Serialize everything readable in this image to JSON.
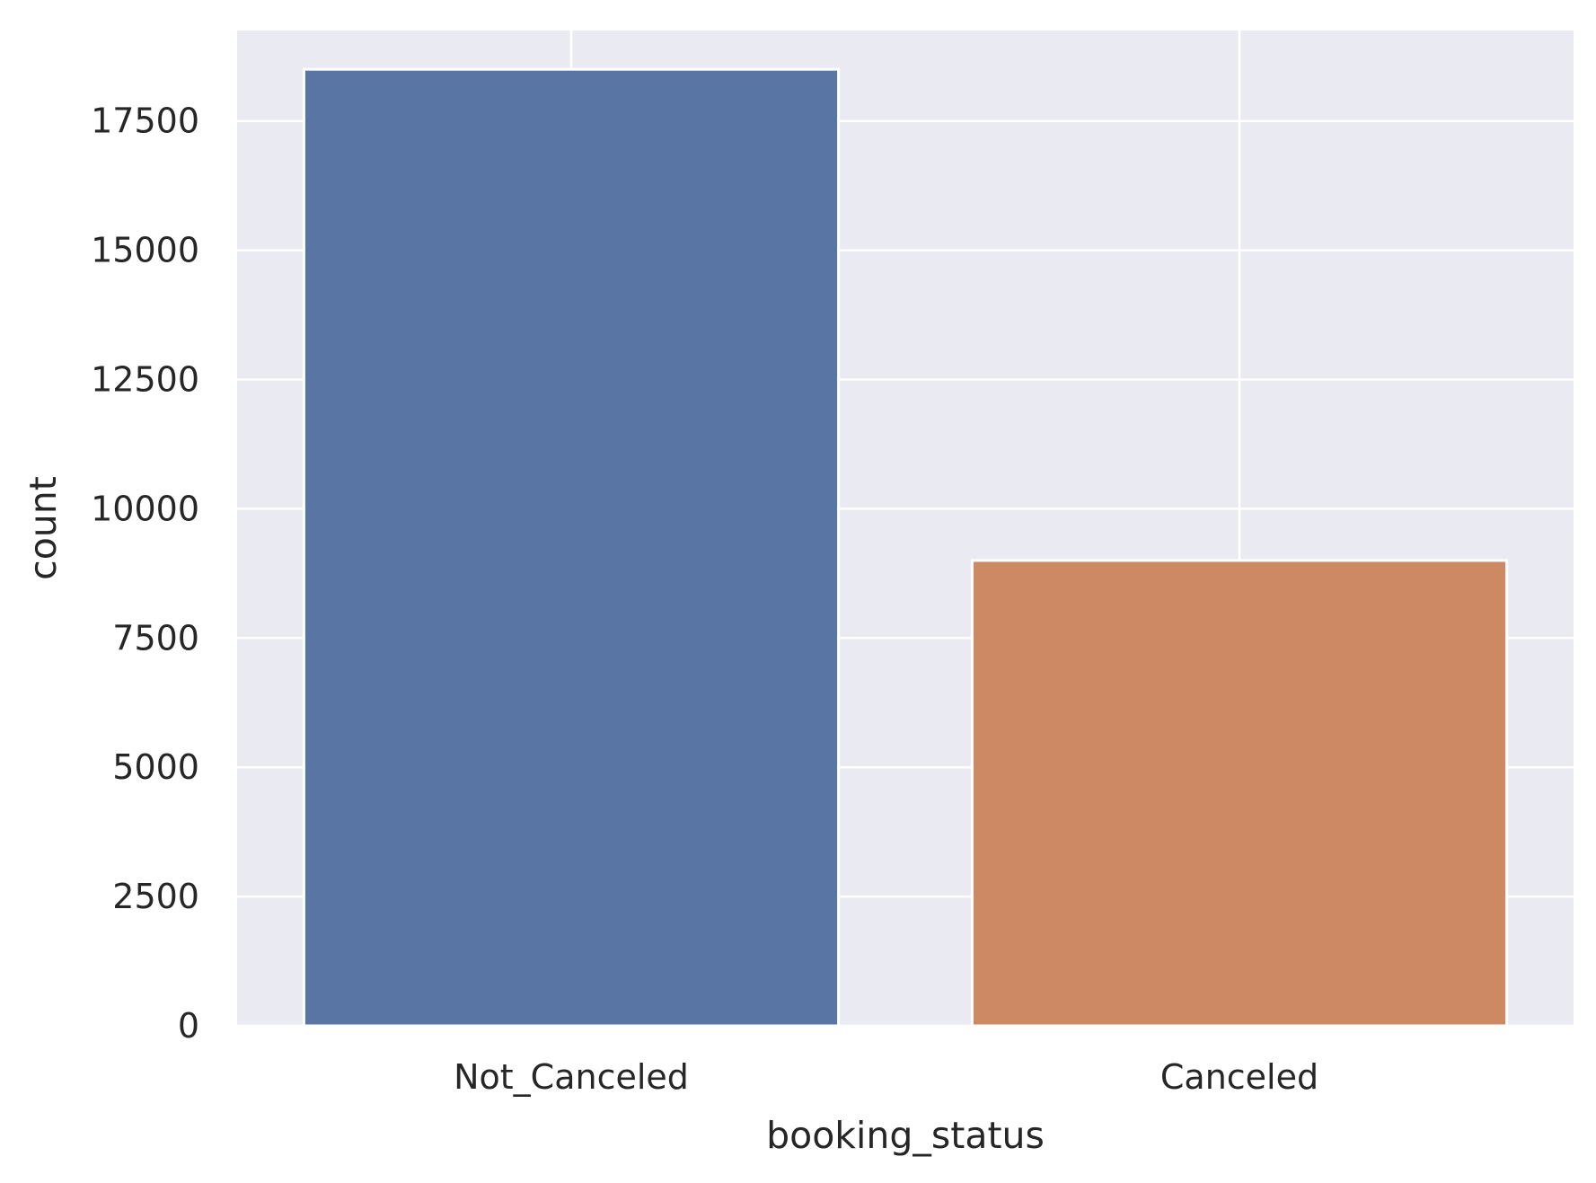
{
  "chart_data": {
    "type": "bar",
    "categories": [
      "Not_Canceled",
      "Canceled"
    ],
    "values": [
      18500,
      9000
    ],
    "bar_colors": [
      "#5975a4",
      "#cc8963"
    ],
    "title": "",
    "xlabel": "booking_status",
    "ylabel": "count",
    "ylim": [
      0,
      19250
    ],
    "yticks": [
      0,
      2500,
      5000,
      7500,
      10000,
      12500,
      15000,
      17500
    ],
    "ytick_labels": [
      "0",
      "2500",
      "5000",
      "7500",
      "10000",
      "12500",
      "15000",
      "17500"
    ],
    "grid": true,
    "legend": "none",
    "colors": {
      "plot_background": "#eaeaf2",
      "grid": "#ffffff",
      "text": "#262626"
    }
  }
}
